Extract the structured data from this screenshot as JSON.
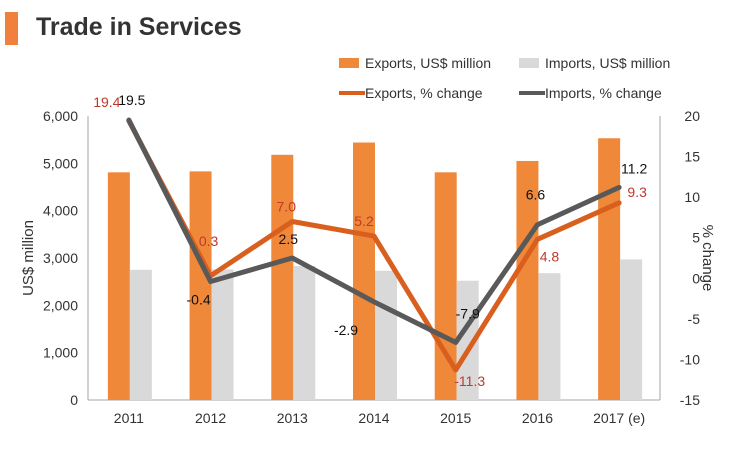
{
  "header": {
    "title": "Trade in Services"
  },
  "colors": {
    "accent": "#F0803C",
    "exports_bar": "#F0883A",
    "imports_bar": "#D9D9D9",
    "exports_line": "#D95F1E",
    "imports_line": "#595959",
    "export_label": "#C0392B",
    "axis_text": "#333333",
    "axis_line": "#A6A6A6"
  },
  "chart_data": {
    "type": "bar",
    "title": "Trade in Services",
    "categories": [
      "2011",
      "2012",
      "2013",
      "2014",
      "2015",
      "2016",
      "2017 (e)"
    ],
    "ylabel": "US$ million",
    "y2label": "% change",
    "ylim": [
      0,
      6000
    ],
    "y2lim": [
      -15,
      20
    ],
    "yticks": [
      "0",
      "1,000",
      "2,000",
      "3,000",
      "4,000",
      "5,000",
      "6,000"
    ],
    "y2ticks": [
      "-15",
      "-10",
      "-5",
      "0",
      "5",
      "10",
      "15",
      "20"
    ],
    "legend_position": "top-right",
    "series": [
      {
        "name": "Exports, US$ million",
        "type": "bar",
        "axis": "left",
        "values": [
          4810,
          4830,
          5180,
          5440,
          4810,
          5050,
          5530
        ]
      },
      {
        "name": "Imports, US$ million",
        "type": "bar",
        "axis": "left",
        "values": [
          2750,
          2760,
          2830,
          2730,
          2520,
          2680,
          2970
        ]
      },
      {
        "name": "Exports, % change",
        "type": "line",
        "axis": "right",
        "values": [
          19.4,
          0.3,
          7.0,
          5.2,
          -11.3,
          4.8,
          9.3
        ],
        "labels": [
          "19.4",
          "0.3",
          "7.0",
          "5.2",
          "-11.3",
          "4.8",
          "9.3"
        ]
      },
      {
        "name": "Imports, % change",
        "type": "line",
        "axis": "right",
        "values": [
          19.5,
          -0.4,
          2.5,
          -2.9,
          -7.9,
          6.6,
          11.2
        ],
        "labels": [
          "19.5",
          "-0.4",
          "2.5",
          "-2.9",
          "-7.9",
          "6.6",
          "11.2"
        ]
      }
    ]
  }
}
